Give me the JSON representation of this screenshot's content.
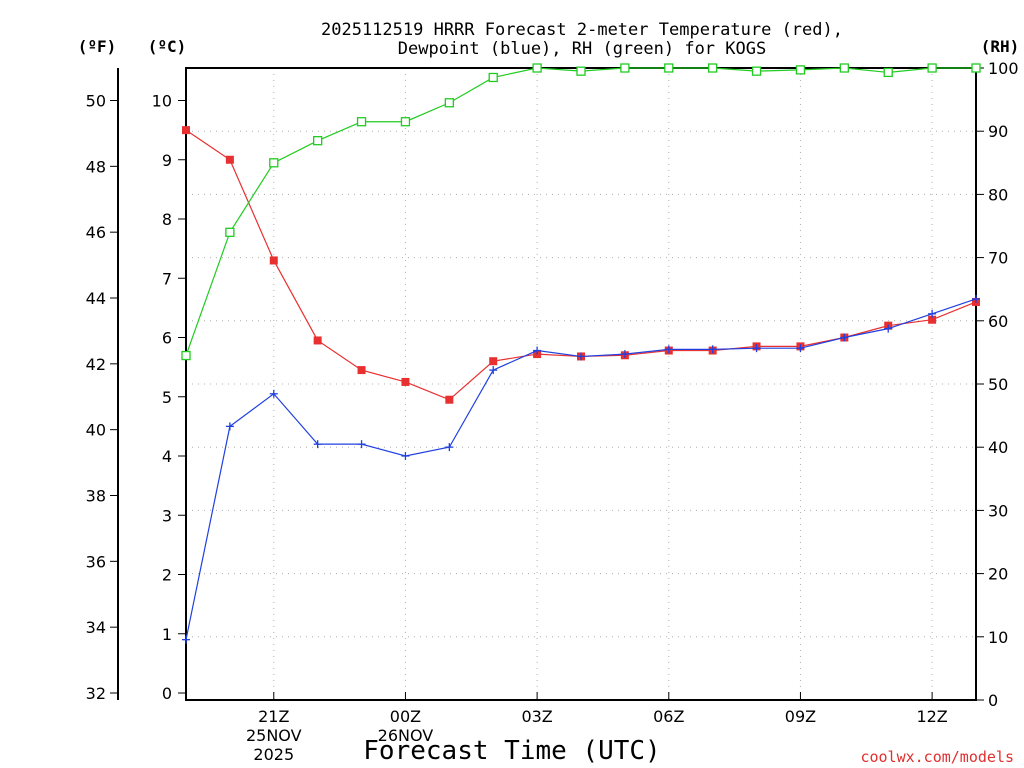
{
  "chart_data": {
    "type": "line",
    "title": [
      "2025112519 HRRR Forecast 2-meter Temperature (red),",
      "Dewpoint (blue), RH (green) for KOGS"
    ],
    "unit_labels": {
      "fahrenheit": "(ºF)",
      "celsius": "(ºC)",
      "rh": "(RH)"
    },
    "xlabel": "Forecast Time (UTC)",
    "credit": "coolwx.com/models",
    "hours": [
      19,
      20,
      21,
      22,
      23,
      24,
      25,
      26,
      27,
      28,
      29,
      30,
      31,
      32,
      33,
      34,
      35,
      36,
      37
    ],
    "xlim": [
      19,
      37
    ],
    "x_ticks": [
      {
        "hour": 21,
        "lines": [
          "21Z",
          "25NOV",
          "2025"
        ]
      },
      {
        "hour": 24,
        "lines": [
          "00Z",
          "26NOV"
        ]
      },
      {
        "hour": 27,
        "lines": [
          "03Z"
        ]
      },
      {
        "hour": 30,
        "lines": [
          "06Z"
        ]
      },
      {
        "hour": 33,
        "lines": [
          "09Z"
        ]
      },
      {
        "hour": 36,
        "lines": [
          "12Z"
        ]
      }
    ],
    "celsius_axis": {
      "range": [
        0,
        10.4
      ],
      "ticks": [
        0,
        1,
        2,
        3,
        4,
        5,
        6,
        7,
        8,
        9,
        10
      ]
    },
    "fahrenheit_axis": {
      "ticks": [
        32,
        34,
        36,
        38,
        40,
        42,
        44,
        46,
        48,
        50
      ]
    },
    "rh_axis": {
      "range": [
        0,
        100
      ],
      "ticks": [
        0,
        10,
        20,
        30,
        40,
        50,
        60,
        70,
        80,
        90,
        100
      ]
    },
    "series": [
      {
        "name": "Temperature",
        "unit": "C",
        "color": "#e83030",
        "marker": "filled-square",
        "values": [
          9.5,
          9.0,
          7.3,
          5.95,
          5.45,
          5.25,
          4.95,
          5.6,
          5.72,
          5.68,
          5.7,
          5.78,
          5.78,
          5.85,
          5.85,
          6.0,
          6.2,
          6.3,
          6.6
        ]
      },
      {
        "name": "Dewpoint",
        "unit": "C",
        "color": "#2040e0",
        "marker": "plus",
        "values": [
          0.9,
          4.5,
          5.05,
          4.2,
          4.2,
          4.0,
          4.15,
          5.45,
          5.78,
          5.68,
          5.72,
          5.8,
          5.8,
          5.82,
          5.82,
          6.0,
          6.15,
          6.4,
          6.65
        ]
      },
      {
        "name": "RH",
        "unit": "%",
        "color": "#20cc20",
        "marker": "open-square",
        "values": [
          54.5,
          74,
          85,
          88.5,
          91.5,
          91.5,
          94.5,
          98.5,
          100,
          99.5,
          100,
          100,
          100,
          99.5,
          99.7,
          100,
          99.3,
          100,
          100
        ]
      }
    ]
  }
}
